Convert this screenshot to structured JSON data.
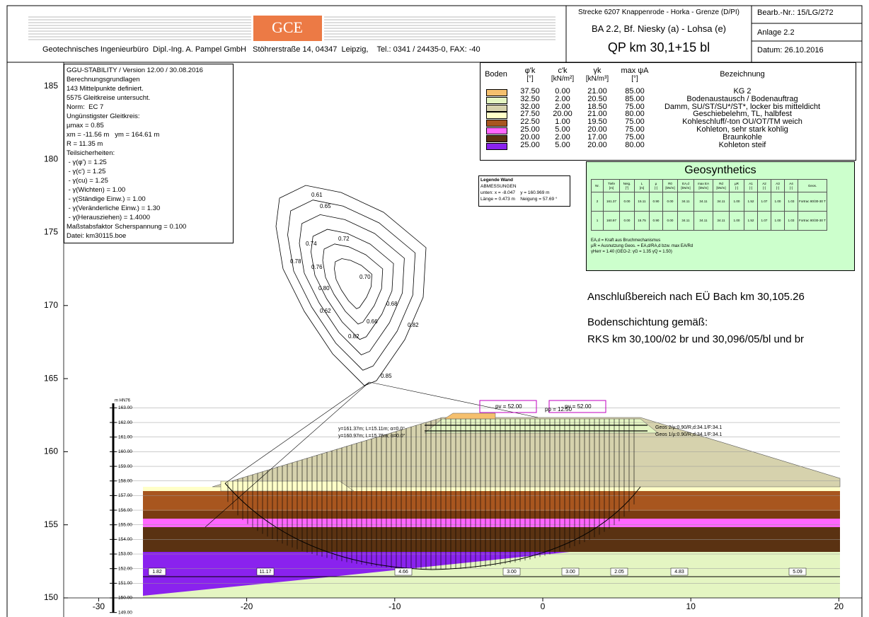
{
  "header": {
    "logo": "GCE",
    "company": "Geotechnisches Ingenieurbüro  Dipl.-Ing. A. Pampel GmbH   Stöhrerstraße 14, 04347  Leipzig,    Tel.: 0341 / 24435-0, FAX: -40",
    "project": "Strecke 6207 Knappenrode - Horka - Grenze (D/PI)",
    "section": "BA 2.2, Bf. Niesky (a) - Lohsa (e)",
    "profile": "QP km 30,1+15 bl",
    "job_number": "Bearb.-Nr.: 15/LG/272",
    "annex": "Anlage 2.2",
    "date": "Datum: 26.10.2016"
  },
  "info_box": [
    "GGU-STABILITY / Version 12.00 / 30.08.2016",
    "Berechnungsgrundlagen",
    "143 Mittelpunkte definiert.",
    "5575 Gleitkreise untersucht.",
    "Norm:  EC 7",
    "Ungünstigster Gleitkreis:",
    "µmax = 0.85",
    "xm = -11.56 m   ym = 164.61 m",
    "R = 11.35 m",
    "Teilsicherheiten:",
    " - γ(φ') = 1.25",
    " - γ(c') = 1.25",
    " - γ(cu) = 1.25",
    " - γ(Wichten) = 1.00",
    " - γ(Ständige Einw.) = 1.00",
    " - γ(Veränderliche Einw.) = 1.30",
    " - γ(Herausziehen) = 1.4000",
    "Maßstabsfaktor Scherspannung = 0.100",
    "Datei: km30115.boe"
  ],
  "soil_table": {
    "columns": [
      {
        "label": "Boden"
      },
      {
        "label": "φ'k",
        "unit": "[°]"
      },
      {
        "label": "c'k",
        "unit": "[kN/m²]"
      },
      {
        "label": "γk",
        "unit": "[kN/m³]"
      },
      {
        "label": "max ψA",
        "unit": "[°]"
      },
      {
        "label": "Bezeichnung"
      }
    ],
    "rows": [
      {
        "color": "#f5c06e",
        "phi": "37.50",
        "c": "0.00",
        "gamma": "21.00",
        "psi": "85.00",
        "name": "KG 2"
      },
      {
        "color": "#e4f5c2",
        "phi": "32.50",
        "c": "2.00",
        "gamma": "20.50",
        "psi": "85.00",
        "name": "Bodenaustausch / Bodenauftrag"
      },
      {
        "color": "#d6d2ad",
        "phi": "32.00",
        "c": "2.00",
        "gamma": "18.50",
        "psi": "75.00",
        "name": "Damm, SU/ST/SU*/ST*, locker bis mitteldicht"
      },
      {
        "color": "#ffffc8",
        "phi": "27.50",
        "c": "20.00",
        "gamma": "21.00",
        "psi": "80.00",
        "name": "Geschiebelehm, TL, halbfest"
      },
      {
        "color": "#a8561f",
        "phi": "22.50",
        "c": "1.00",
        "gamma": "19.50",
        "psi": "75.00",
        "name": "Kohleschluff/-ton OU/OT/TM weich"
      },
      {
        "color": "#ff66ff",
        "phi": "25.00",
        "c": "5.00",
        "gamma": "20.00",
        "psi": "75.00",
        "name": "Kohleton, sehr stark kohlig"
      },
      {
        "color": "#5a3212",
        "phi": "20.00",
        "c": "2.00",
        "gamma": "17.00",
        "psi": "75.00",
        "name": "Braunkohle"
      },
      {
        "color": "#8a22ee",
        "phi": "25.00",
        "c": "5.00",
        "gamma": "20.00",
        "psi": "80.00",
        "name": "Kohleton steif"
      }
    ]
  },
  "wall_legend": [
    "Legende Wand",
    "ABMESSUNGEN",
    "unten: x = -8.047    y = 160.969 m",
    "Länge = 0.473 m    Neigung = 57.69 °"
  ],
  "geosynthetics": {
    "title": "Geosynthetics",
    "columns": [
      {
        "label": "Nr."
      },
      {
        "label": "Tiefe",
        "unit": "[m]"
      },
      {
        "label": "Neig.",
        "unit": "[°]"
      },
      {
        "label": "L",
        "unit": "[m]"
      },
      {
        "label": "µ",
        "unit": "[-]"
      },
      {
        "label": "R0",
        "unit": "[kN/m]"
      },
      {
        "label": "EA,d",
        "unit": "[kN/m]"
      },
      {
        "label": "max EA",
        "unit": "[kN/m]"
      },
      {
        "label": "Rd",
        "unit": "[kN/m]"
      },
      {
        "label": "µR",
        "unit": "[-]"
      },
      {
        "label": "A1",
        "unit": "[-]"
      },
      {
        "label": "A2",
        "unit": "[-]"
      },
      {
        "label": "A3",
        "unit": "[-]"
      },
      {
        "label": "A4",
        "unit": "[-]"
      },
      {
        "label": "Geos."
      }
    ],
    "rows": [
      [
        "2",
        "161.37",
        "0.00",
        "15.11",
        "0.90",
        "0.00",
        "34.11",
        "34.11",
        "34.11",
        "1.00",
        "1.52",
        "1.07",
        "1.00",
        "1.03",
        "Fortrac 80/30-30 T"
      ],
      [
        "1",
        "160.97",
        "0.00",
        "15.75",
        "0.90",
        "0.00",
        "34.11",
        "34.11",
        "34.11",
        "1.00",
        "1.52",
        "1.07",
        "1.00",
        "1.03",
        "Fortrac 80/30-30 T"
      ]
    ],
    "notes": [
      "EA,d = Kraft aus Bruchmechanismus",
      "µR = Ausnutzung Geos. = EA,d/RA,d bzw. max EA/Rd",
      "γHerr = 1.40 (GEO-2: γG = 1.35 γQ = 1.50)"
    ]
  },
  "annotations": [
    "Anschlußbereich nach EÜ Bach km 30,105.26",
    "Bodenschichtung gemäß:",
    "RKS km 30,100/02 br und 30,096/05/bl und br"
  ],
  "axes": {
    "x_ticks": [
      -30,
      -20,
      -10,
      0,
      10,
      20
    ],
    "y_ticks": [
      150,
      155,
      160,
      165,
      170,
      175,
      180,
      185
    ]
  },
  "section": {
    "elevation_unit": "m HN76",
    "elevation_labels": [
      "163.00",
      "162.00",
      "161.00",
      "160.00",
      "159.00",
      "158.00",
      "157.00",
      "156.00",
      "155.00",
      "154.00",
      "153.00",
      "152.00",
      "151.00",
      "150.00",
      "149.00"
    ],
    "loads": [
      "pv = 52.00",
      "pp = 12.50",
      "pv = 52.00"
    ],
    "geogrid_labels": [
      "Geos 2/µ:0.90/R,d:34.1/F:34.1",
      "Geos 1/µ:0.90/R,d:34.1/F:34.1"
    ],
    "geogrid_info": [
      "y=161.37m; L=15.11m; α=0.0°",
      "y=160.97m; L=15.75m; α=0.0°"
    ],
    "segment_lengths": [
      "1.82",
      "11.17",
      "4.66",
      "3.00",
      "3.00",
      "2.05",
      "4.83",
      "5.09"
    ],
    "contour_labels": [
      "0.61",
      "0.65",
      "0.74",
      "0.72",
      "0.76",
      "0.78",
      "0.70",
      "0.80",
      "0.68",
      "0.62",
      "0.66",
      "0.82",
      "0.82",
      "0.85"
    ]
  }
}
